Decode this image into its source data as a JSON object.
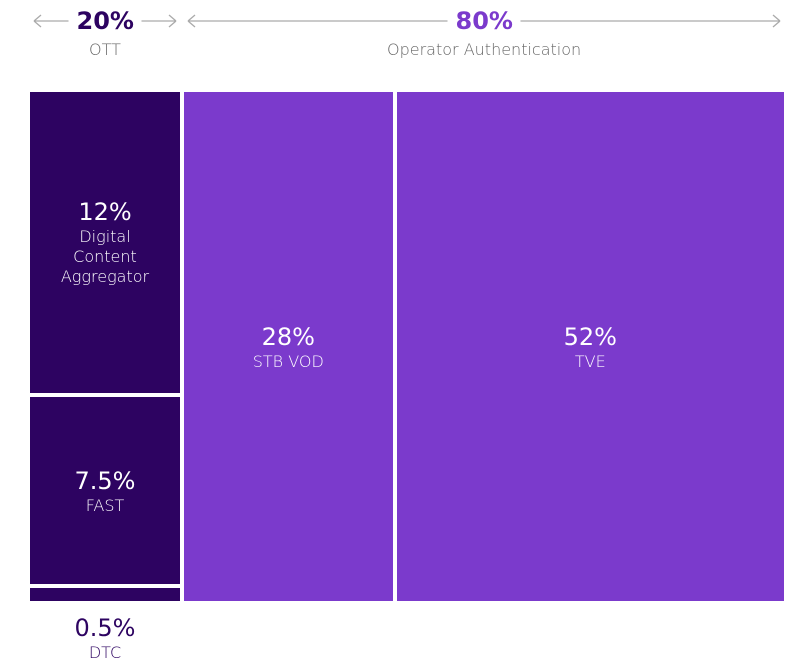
{
  "chart_data": {
    "type": "treemap",
    "groups": [
      {
        "name": "OTT",
        "value": 20,
        "value_label": "20%",
        "color": "#2d0361",
        "categories": [
          "Digital Content Aggregator",
          "FAST",
          "DTC"
        ],
        "values": [
          12,
          7.5,
          0.5
        ],
        "value_labels": [
          "12%",
          "7.5%",
          "0.5%"
        ]
      },
      {
        "name": "Operator Authentication",
        "value": 80,
        "value_label": "80%",
        "color": "#7b3acc",
        "categories": [
          "STB VOD",
          "TVE"
        ],
        "values": [
          28,
          52
        ],
        "value_labels": [
          "28%",
          "52%"
        ]
      }
    ]
  }
}
